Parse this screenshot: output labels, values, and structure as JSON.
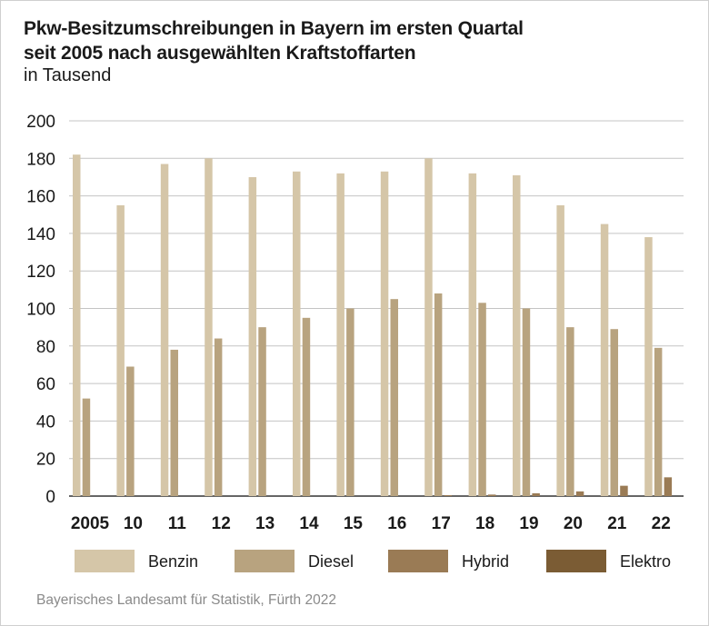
{
  "chart_data": {
    "type": "bar",
    "title": "Pkw-Besitzumschreibungen in Bayern im ersten Quartal seit 2005 nach ausgewählten Kraftstoffarten",
    "title_lines": [
      "Pkw-Besitzumschreibungen in Bayern im ersten Quartal",
      "seit 2005 nach ausgewählten Kraftstoffarten"
    ],
    "subtitle": "in Tausend",
    "categories": [
      "2005",
      "10",
      "11",
      "12",
      "13",
      "14",
      "15",
      "16",
      "17",
      "18",
      "19",
      "20",
      "21",
      "22"
    ],
    "series": [
      {
        "name": "Benzin",
        "color": "#d5c6a8",
        "values": [
          182,
          155,
          177,
          180,
          170,
          173,
          172,
          173,
          180,
          172,
          171,
          155,
          145,
          138
        ]
      },
      {
        "name": "Diesel",
        "color": "#b8a37f",
        "values": [
          52,
          69,
          78,
          84,
          90,
          95,
          100,
          105,
          108,
          103,
          100,
          90,
          89,
          79
        ]
      },
      {
        "name": "Hybrid",
        "color": "#9a7b55",
        "values": [
          0,
          0,
          0,
          0,
          0,
          0,
          0,
          0,
          0.5,
          0.8,
          1.5,
          2.5,
          5.5,
          10
        ]
      },
      {
        "name": "Elektro",
        "color": "#7b5c34",
        "values": [
          0,
          0,
          0,
          0,
          0,
          0,
          0,
          0,
          0,
          0,
          0,
          0,
          0,
          0
        ]
      }
    ],
    "yticks": [
      0,
      20,
      40,
      60,
      80,
      100,
      120,
      140,
      160,
      180,
      200
    ],
    "ylim": [
      0,
      200
    ],
    "grid": true,
    "legend_position": "bottom",
    "source": "Bayerisches Landesamt für Statistik, Fürth 2022"
  }
}
